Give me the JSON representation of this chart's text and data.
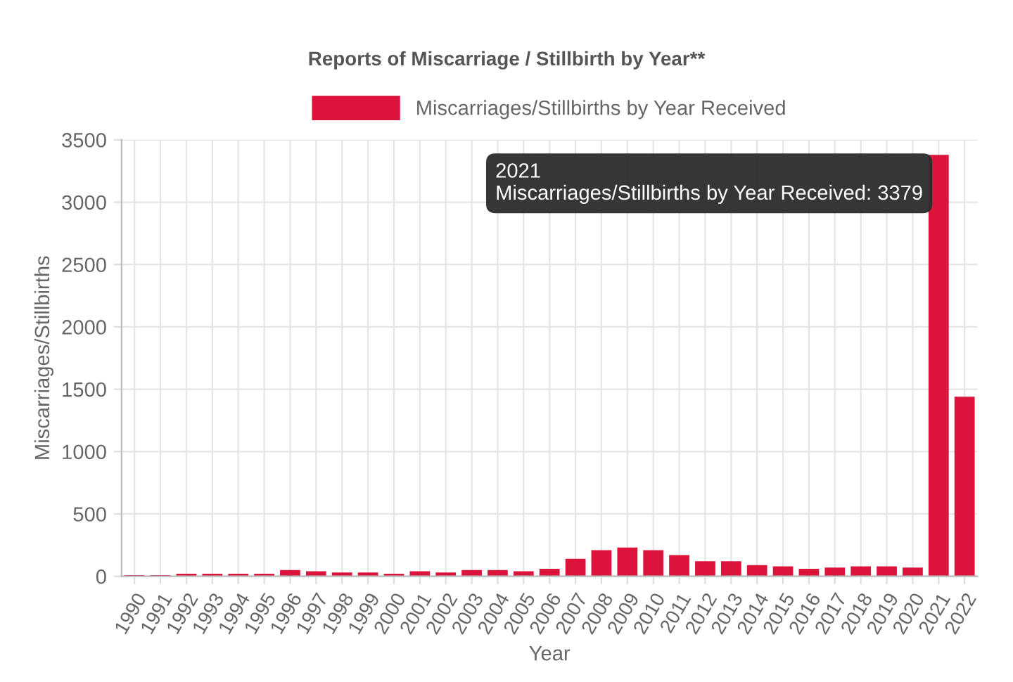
{
  "chart_data": {
    "type": "bar",
    "title": "Reports of Miscarriage / Stillbirth by Year**",
    "xlabel": "Year",
    "ylabel": "Miscarriages/Stillbirths",
    "categories": [
      "1990",
      "1991",
      "1992",
      "1993",
      "1994",
      "1995",
      "1996",
      "1997",
      "1998",
      "1999",
      "2000",
      "2001",
      "2002",
      "2003",
      "2004",
      "2005",
      "2006",
      "2007",
      "2008",
      "2009",
      "2010",
      "2011",
      "2012",
      "2013",
      "2014",
      "2015",
      "2016",
      "2017",
      "2018",
      "2019",
      "2020",
      "2021",
      "2022"
    ],
    "series": [
      {
        "name": "Miscarriages/Stillbirths by Year Received",
        "color": "#dc143c",
        "values": [
          10,
          10,
          20,
          20,
          20,
          20,
          50,
          40,
          30,
          30,
          20,
          40,
          30,
          50,
          50,
          40,
          60,
          140,
          210,
          230,
          210,
          170,
          120,
          120,
          90,
          80,
          60,
          70,
          80,
          80,
          70,
          3379,
          1440
        ]
      }
    ],
    "ylim": [
      0,
      3500
    ],
    "yticks": [
      0,
      500,
      1000,
      1500,
      2000,
      2500,
      3000,
      3500
    ],
    "grid": true,
    "legend": "top",
    "annotations": [
      {
        "text": "2021\nMiscarriages/Stillbirths by Year Received: 3379",
        "x": "2021",
        "y": 3379
      }
    ]
  }
}
